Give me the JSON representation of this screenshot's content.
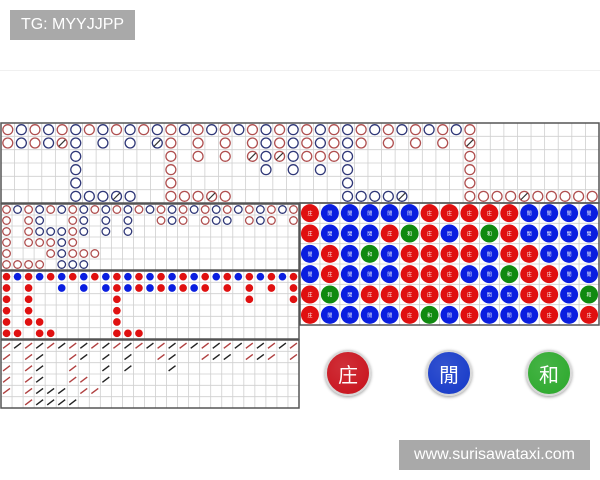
{
  "watermarks": {
    "top_left": "TG: MYYJJPP",
    "bottom_right": "www.surisawataxi.com"
  },
  "colors": {
    "banker": "#e01010",
    "player": "#0a1ee0",
    "tie": "#108a10",
    "banker_ring": "#b05050",
    "player_ring": "#303878",
    "grid": "#cfcfcf",
    "border": "#555555"
  },
  "legend_key": {
    "r": "banker",
    "b": "player",
    "R": "banker-with-tie",
    "B": "player-with-tie",
    "G": "tie"
  },
  "big_road": {
    "rows": [
      "rbrbrbrbrbrbrbrbrbrbrbrbrbrbrbrbrbr.........",
      "rbrbRb.b.b.Br.r.r.rbrbrbrbr.r.r.r.R.........",
      ".....b......r.r.r.RbRbrrrb........r.........",
      ".....b......r......b.b.b.b........r.........",
      ".....b......r............b........r.........",
      ".....bbbBb..rrrRr........bbbbB....rrrrRrrrrr"
    ]
  },
  "big_eye_road": {
    "rows": [
      "rbrbrbrbrbrbrbrbrbrbrbrbrbr",
      "r.rb..rb.b.b..rbr.rbb.rbr.r",
      "r.rbbbrb.b.b...............",
      "r.rrrbr....................",
      "r...rbrrr..................",
      "rrrr.bbb..................."
    ]
  },
  "small_road": {
    "rows": [
      "rbrbrbrbrbrbrbrbrbrbrbrbrbr",
      "r.r..b.b.brbrbrbrbr.r.r.r.r",
      "r.r.......r...........r...r",
      "r.r.......r................",
      "r.rr......r................",
      "rr.rr.....rrr.............."
    ]
  },
  "cockroach_road": {
    "rows": [
      "rbrbrbrbrbrbrbrbrbrbrbrbrbr",
      "r.rb..rb.b.b..rb..rbb.rbr.r",
      "r.rb..r..b.b...b...........",
      "r.rb..rr.b.................",
      "r.rbbb.rr..................",
      "..rbbbb...................."
    ]
  },
  "bead_plate": {
    "labels": {
      "R": "庄",
      "B": "閒",
      "G": "和"
    },
    "rows": [
      "RBBBBBRRRRRBBBB",
      "RBBBRGRBRGRBBBB",
      "BRBGBRRRRBRRBBB",
      "BRBBBRRRBBGRRBB",
      "RGBRRRRRRBBRRBG",
      "RBBBBRGBRBBBRBR"
    ]
  },
  "buttons": [
    {
      "label": "庄",
      "color": "#c8101a",
      "name": "banker-button"
    },
    {
      "label": "閒",
      "color": "#1438c8",
      "name": "player-button"
    },
    {
      "label": "和",
      "color": "#2aa82a",
      "name": "tie-button"
    }
  ]
}
